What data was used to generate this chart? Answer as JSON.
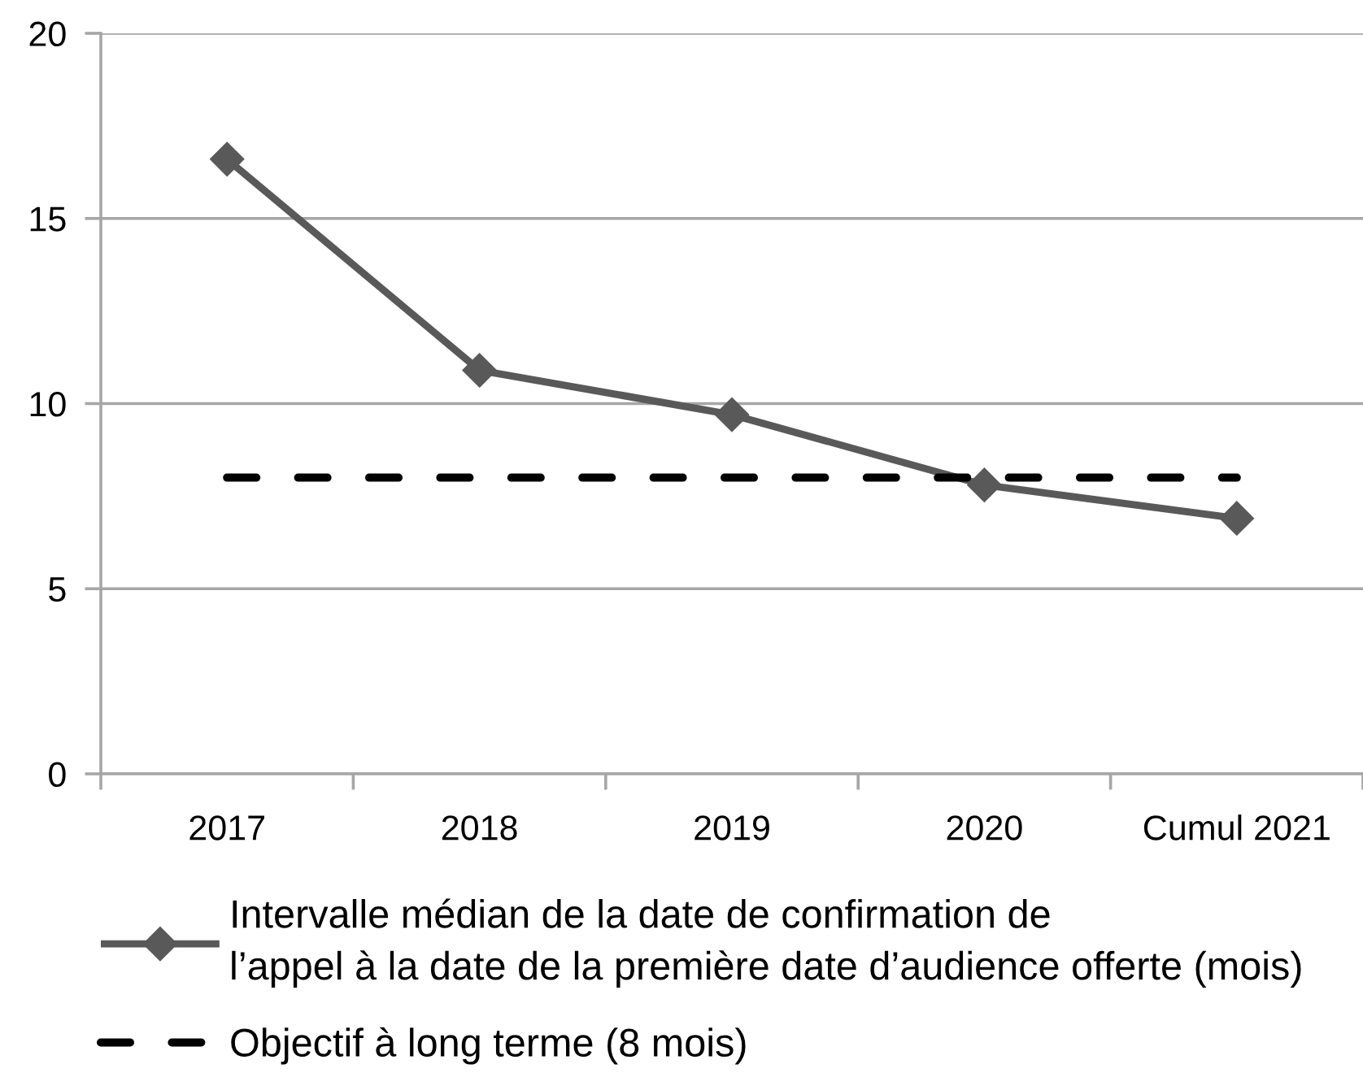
{
  "chart_data": {
    "type": "line",
    "categories": [
      "2017",
      "2018",
      "2019",
      "2020",
      "Cumul 2021"
    ],
    "series": [
      {
        "name": "Intervalle médian de la date de confirmation de\nl’appel à la date de la première date d’audience offerte (mois)",
        "color": "#595959",
        "values": [
          16.6,
          10.9,
          9.7,
          7.8,
          6.9
        ],
        "marker": "diamond",
        "line_style": "solid"
      },
      {
        "name": "Objectif à long terme (8 mois)",
        "color": "#000000",
        "values": [
          8,
          8,
          8,
          8,
          8
        ],
        "marker": "none",
        "line_style": "dashed"
      }
    ],
    "ylim": [
      0,
      20
    ],
    "yticks": [
      0,
      5,
      10,
      15,
      20
    ],
    "grid": "y",
    "legend": "bottom"
  }
}
